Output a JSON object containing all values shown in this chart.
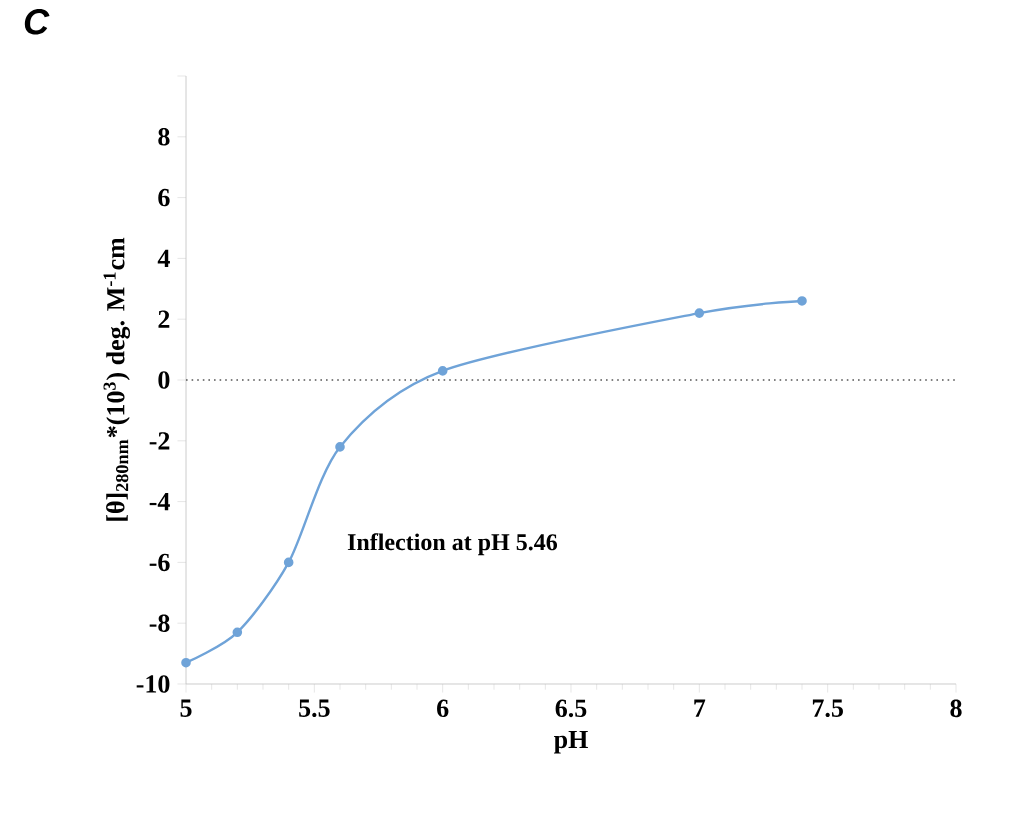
{
  "chart_data": {
    "type": "line",
    "title": "C",
    "xlabel": "pH",
    "ylabel": "[θ]$_{280nm}$*(10$^{3}$) deg. M$^{-1}$cm",
    "x": [
      5,
      5.2,
      5.4,
      5.6,
      6,
      7,
      7.4
    ],
    "series": [
      {
        "color": "#6fa3d8",
        "values": [
          -9.3,
          -8.3,
          -6.0,
          -2.2,
          0.3,
          2.2,
          2.6
        ]
      }
    ],
    "xlim": [
      5,
      8
    ],
    "xticks": [
      5,
      5.5,
      6,
      6.5,
      7,
      7.5,
      8
    ],
    "ylim": [
      -10,
      10
    ],
    "yticks": [
      -10,
      -8,
      -6,
      -4,
      -2,
      0,
      2,
      4,
      6,
      8,
      {
        "value": 10,
        "label": null
      }
    ],
    "ref_lines": [
      {
        "axis": "y",
        "value": 0,
        "color": "#555555",
        "line_style": "dotted"
      }
    ],
    "annotations": [
      "Inflection at pH 5.46"
    ],
    "marker": "circle",
    "line_style": "solid"
  }
}
